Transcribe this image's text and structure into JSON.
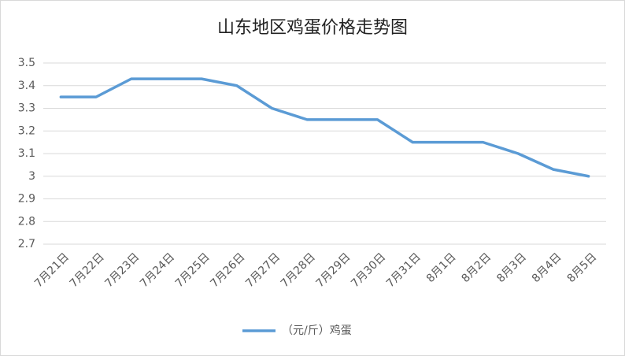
{
  "chart_data": {
    "type": "line",
    "title": "山东地区鸡蛋价格走势图",
    "categories": [
      "7月21日",
      "7月22日",
      "7月23日",
      "7月24日",
      "7月25日",
      "7月26日",
      "7月27日",
      "7月28日",
      "7月29日",
      "7月30日",
      "7月31日",
      "8月1日",
      "8月2日",
      "8月3日",
      "8月4日",
      "8月5日"
    ],
    "series": [
      {
        "name": "（元/斤）鸡蛋",
        "color": "#5b9bd5",
        "values": [
          3.35,
          3.35,
          3.43,
          3.43,
          3.43,
          3.4,
          3.3,
          3.25,
          3.25,
          3.25,
          3.15,
          3.15,
          3.15,
          3.1,
          3.03,
          3.0
        ]
      }
    ],
    "ylim": [
      2.7,
      3.5
    ],
    "yticks": [
      2.7,
      2.8,
      2.9,
      3,
      3.1,
      3.2,
      3.3,
      3.4,
      3.5
    ],
    "grid": true,
    "legend": "bottom"
  }
}
